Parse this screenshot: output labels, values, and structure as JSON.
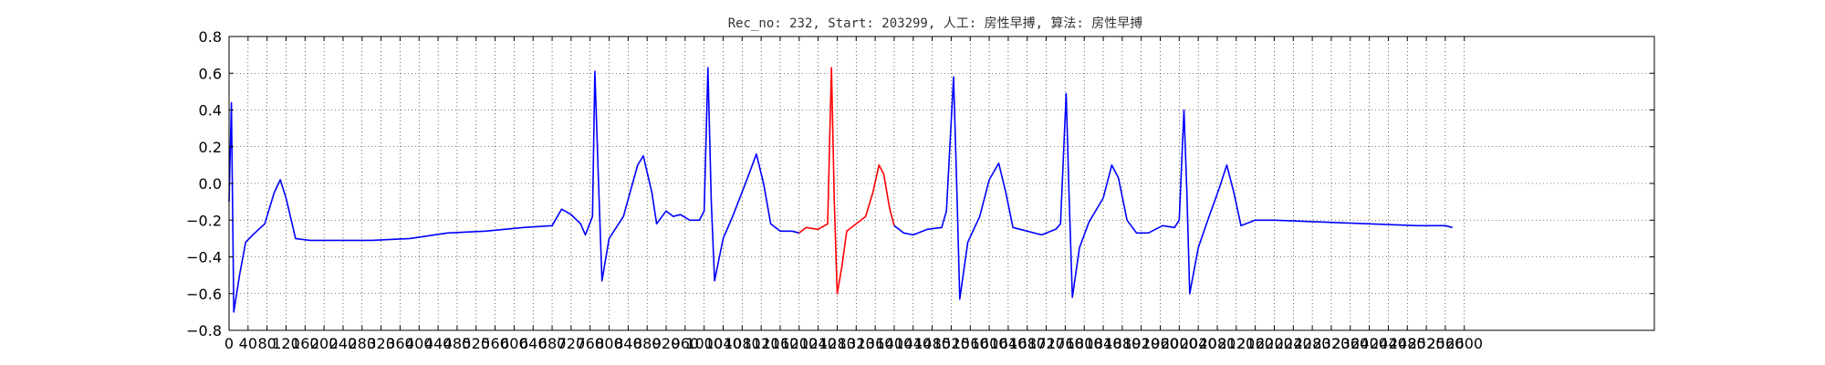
{
  "chart_data": {
    "type": "line",
    "title": "Rec_no: 232, Start: 203299, 人工: 房性早搏, 算法: 房性早搏",
    "xlabel": "",
    "ylabel": "",
    "xlim": [
      0,
      3000
    ],
    "ylim": [
      -0.8,
      0.8
    ],
    "grid": true,
    "yticks": [
      0.8,
      0.6,
      0.4,
      0.2,
      0.0,
      -0.2,
      -0.4,
      -0.6,
      -0.8
    ],
    "ytick_labels": [
      "0.8",
      "0.6",
      "0.4",
      "0.2",
      "0.0",
      "−0.2",
      "−0.4",
      "−0.6",
      "−0.8"
    ],
    "xticks": [
      0,
      40,
      80,
      120,
      160,
      200,
      240,
      280,
      320,
      360,
      400,
      440,
      480,
      520,
      560,
      600,
      640,
      680,
      720,
      760,
      800,
      840,
      880,
      920,
      960,
      1000,
      1040,
      1080,
      1120,
      1160,
      1200,
      1240,
      1280,
      1320,
      1360,
      1400,
      1440,
      1480,
      1520,
      1560,
      1600,
      1640,
      1680,
      1720,
      1760,
      1800,
      1840,
      1880,
      1920,
      1960,
      2000,
      2040,
      2080,
      2120,
      2160,
      2200,
      2240,
      2280,
      2320,
      2360,
      2400,
      2440,
      2480,
      2520,
      2560,
      2600
    ],
    "series": [
      {
        "color": "#0000ff",
        "points": [
          [
            0,
            -0.1
          ],
          [
            5,
            0.44
          ],
          [
            10,
            -0.7
          ],
          [
            22,
            -0.5
          ],
          [
            35,
            -0.32
          ],
          [
            50,
            -0.28
          ],
          [
            75,
            -0.22
          ],
          [
            95,
            -0.05
          ],
          [
            108,
            0.02
          ],
          [
            120,
            -0.08
          ],
          [
            140,
            -0.3
          ],
          [
            170,
            -0.31
          ],
          [
            220,
            -0.31
          ],
          [
            300,
            -0.31
          ],
          [
            380,
            -0.3
          ],
          [
            460,
            -0.27
          ],
          [
            540,
            -0.26
          ],
          [
            620,
            -0.24
          ],
          [
            680,
            -0.23
          ],
          [
            700,
            -0.14
          ],
          [
            720,
            -0.17
          ],
          [
            740,
            -0.22
          ],
          [
            750,
            -0.28
          ],
          [
            765,
            -0.18
          ],
          [
            770,
            0.61
          ],
          [
            778,
            -0.02
          ],
          [
            785,
            -0.53
          ],
          [
            800,
            -0.3
          ],
          [
            830,
            -0.18
          ],
          [
            860,
            0.1
          ],
          [
            872,
            0.15
          ],
          [
            890,
            -0.05
          ],
          [
            900,
            -0.22
          ],
          [
            920,
            -0.15
          ],
          [
            935,
            -0.18
          ],
          [
            950,
            -0.17
          ],
          [
            970,
            -0.2
          ],
          [
            990,
            -0.2
          ],
          [
            1000,
            -0.15
          ],
          [
            1008,
            0.63
          ],
          [
            1015,
            -0.1
          ],
          [
            1022,
            -0.53
          ],
          [
            1040,
            -0.3
          ],
          [
            1060,
            -0.18
          ],
          [
            1090,
            0.02
          ],
          [
            1110,
            0.16
          ],
          [
            1125,
            0.0
          ],
          [
            1140,
            -0.22
          ],
          [
            1160,
            -0.26
          ],
          [
            1185,
            -0.26
          ],
          [
            1200,
            -0.27
          ]
        ]
      },
      {
        "color": "#ff0000",
        "points": [
          [
            1200,
            -0.27
          ],
          [
            1215,
            -0.24
          ],
          [
            1240,
            -0.25
          ],
          [
            1260,
            -0.22
          ],
          [
            1268,
            0.63
          ],
          [
            1274,
            -0.1
          ],
          [
            1280,
            -0.6
          ],
          [
            1290,
            -0.45
          ],
          [
            1300,
            -0.26
          ],
          [
            1320,
            -0.22
          ],
          [
            1340,
            -0.18
          ],
          [
            1355,
            -0.05
          ],
          [
            1368,
            0.1
          ],
          [
            1378,
            0.05
          ],
          [
            1390,
            -0.13
          ],
          [
            1400,
            -0.23
          ]
        ]
      },
      {
        "color": "#0000ff",
        "points": [
          [
            1400,
            -0.23
          ],
          [
            1420,
            -0.27
          ],
          [
            1440,
            -0.28
          ],
          [
            1470,
            -0.25
          ],
          [
            1500,
            -0.24
          ],
          [
            1510,
            -0.15
          ],
          [
            1525,
            0.58
          ],
          [
            1532,
            -0.05
          ],
          [
            1538,
            -0.63
          ],
          [
            1555,
            -0.32
          ],
          [
            1580,
            -0.18
          ],
          [
            1600,
            0.02
          ],
          [
            1620,
            0.11
          ],
          [
            1635,
            -0.05
          ],
          [
            1650,
            -0.24
          ],
          [
            1680,
            -0.26
          ],
          [
            1710,
            -0.28
          ],
          [
            1740,
            -0.25
          ],
          [
            1750,
            -0.22
          ],
          [
            1762,
            0.49
          ],
          [
            1768,
            -0.05
          ],
          [
            1775,
            -0.62
          ],
          [
            1790,
            -0.35
          ],
          [
            1810,
            -0.21
          ],
          [
            1840,
            -0.08
          ],
          [
            1858,
            0.1
          ],
          [
            1872,
            0.03
          ],
          [
            1890,
            -0.2
          ],
          [
            1910,
            -0.27
          ],
          [
            1935,
            -0.27
          ],
          [
            1965,
            -0.23
          ],
          [
            1990,
            -0.24
          ],
          [
            2000,
            -0.2
          ],
          [
            2010,
            0.4
          ],
          [
            2016,
            -0.05
          ],
          [
            2022,
            -0.6
          ],
          [
            2040,
            -0.35
          ],
          [
            2060,
            -0.2
          ],
          [
            2085,
            -0.02
          ],
          [
            2100,
            0.1
          ],
          [
            2115,
            -0.05
          ],
          [
            2130,
            -0.23
          ],
          [
            2160,
            -0.2
          ],
          [
            2200,
            -0.2
          ],
          [
            2300,
            -0.21
          ],
          [
            2400,
            -0.22
          ],
          [
            2500,
            -0.23
          ],
          [
            2560,
            -0.23
          ],
          [
            2575,
            -0.24
          ]
        ]
      }
    ]
  }
}
